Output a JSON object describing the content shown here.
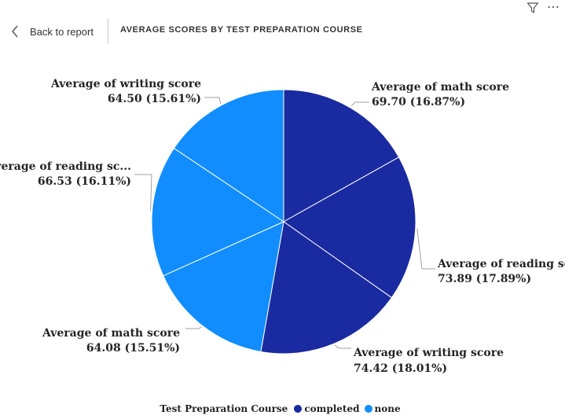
{
  "header": {
    "back_label": "Back to report",
    "title": "AVERAGE SCORES BY TEST PREPARATION COURSE"
  },
  "icons": {
    "filter": "filter-icon",
    "more": "more-options-icon",
    "back": "chevron-left-icon"
  },
  "colors": {
    "completed": "#1A2AA0",
    "none": "#118DFF"
  },
  "chart_data": {
    "type": "pie",
    "title": "AVERAGE SCORES BY TEST PREPARATION COURSE",
    "legend_title": "Test Preparation Course",
    "legend_position": "bottom-center",
    "legend": [
      {
        "name": "completed",
        "color": "#1A2AA0"
      },
      {
        "name": "none",
        "color": "#118DFF"
      }
    ],
    "slices": [
      {
        "label_line1": "Average of math score",
        "label_line2": "69.70 (16.87%)",
        "value": 69.7,
        "percent": 16.87,
        "group": "completed"
      },
      {
        "label_line1": "Average of reading sc...",
        "label_line2": "73.89 (17.89%)",
        "value": 73.89,
        "percent": 17.89,
        "group": "completed"
      },
      {
        "label_line1": "Average of writing score",
        "label_line2": "74.42 (18.01%)",
        "value": 74.42,
        "percent": 18.01,
        "group": "completed"
      },
      {
        "label_line1": "Average of math score",
        "label_line2": "64.08 (15.51%)",
        "value": 64.08,
        "percent": 15.51,
        "group": "none"
      },
      {
        "label_line1": "Average of reading sc...",
        "label_line2": "66.53 (16.11%)",
        "value": 66.53,
        "percent": 16.11,
        "group": "none"
      },
      {
        "label_line1": "Average of writing score",
        "label_line2": "64.50 (15.61%)",
        "value": 64.5,
        "percent": 15.61,
        "group": "none"
      }
    ]
  }
}
